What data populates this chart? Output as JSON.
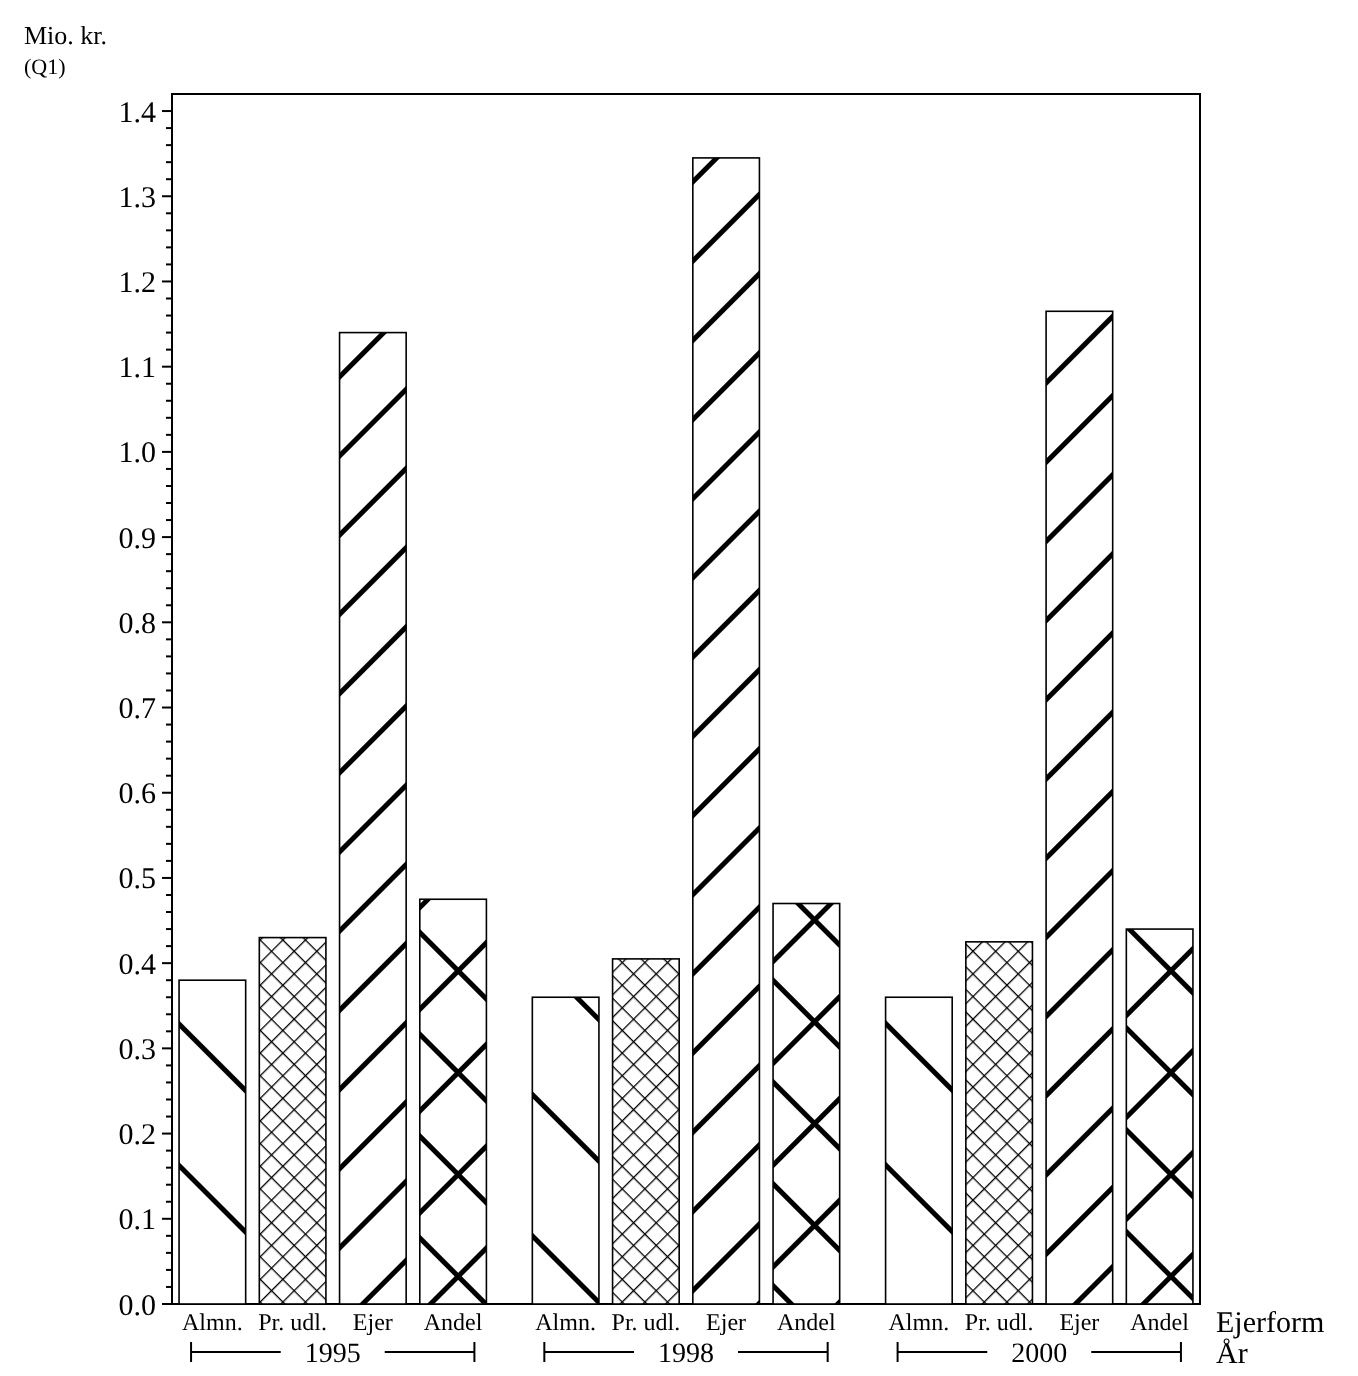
{
  "chart_data": {
    "type": "bar",
    "ylabel": "Mio. kr.",
    "subtitle": "(Q1)",
    "xlabel": "Ejerform",
    "annotations": [
      "År"
    ],
    "categories": [
      "1995",
      "1998",
      "2000"
    ],
    "series": [
      {
        "name": "Almn.",
        "color": "#000000",
        "values": [
          0.38,
          0.36,
          0.36
        ]
      },
      {
        "name": "Pr. udl.",
        "color": "#000000",
        "values": [
          0.43,
          0.405,
          0.425
        ]
      },
      {
        "name": "Ejer",
        "color": "#000000",
        "values": [
          1.14,
          1.345,
          1.165
        ]
      },
      {
        "name": "Andel",
        "color": "#000000",
        "values": [
          0.475,
          0.47,
          0.44
        ]
      }
    ],
    "ylim": [
      0,
      1.42
    ],
    "yticks": [
      {
        "value": 0,
        "label": "0.0"
      },
      {
        "value": 0.02,
        "label": null
      },
      {
        "value": 0.04,
        "label": null
      },
      {
        "value": 0.06,
        "label": null
      },
      {
        "value": 0.08,
        "label": null
      },
      0.1,
      {
        "value": 0.12,
        "label": null
      },
      {
        "value": 0.14,
        "label": null
      },
      {
        "value": 0.16,
        "label": null
      },
      {
        "value": 0.18,
        "label": null
      },
      0.2,
      {
        "value": 0.22,
        "label": null
      },
      {
        "value": 0.24,
        "label": null
      },
      {
        "value": 0.26,
        "label": null
      },
      {
        "value": 0.28,
        "label": null
      },
      0.3,
      {
        "value": 0.32,
        "label": null
      },
      {
        "value": 0.34,
        "label": null
      },
      {
        "value": 0.36,
        "label": null
      },
      {
        "value": 0.38,
        "label": null
      },
      0.4,
      {
        "value": 0.42,
        "label": null
      },
      {
        "value": 0.44,
        "label": null
      },
      {
        "value": 0.46,
        "label": null
      },
      {
        "value": 0.48,
        "label": null
      },
      0.5,
      {
        "value": 0.52,
        "label": null
      },
      {
        "value": 0.54,
        "label": null
      },
      {
        "value": 0.56,
        "label": null
      },
      {
        "value": 0.58,
        "label": null
      },
      0.6,
      {
        "value": 0.62,
        "label": null
      },
      {
        "value": 0.64,
        "label": null
      },
      {
        "value": 0.66,
        "label": null
      },
      {
        "value": 0.68,
        "label": null
      },
      0.7,
      {
        "value": 0.72,
        "label": null
      },
      {
        "value": 0.74,
        "label": null
      },
      {
        "value": 0.76,
        "label": null
      },
      {
        "value": 0.78,
        "label": null
      },
      0.8,
      {
        "value": 0.82,
        "label": null
      },
      {
        "value": 0.84,
        "label": null
      },
      {
        "value": 0.86,
        "label": null
      },
      {
        "value": 0.88,
        "label": null
      },
      0.9,
      {
        "value": 0.92,
        "label": null
      },
      {
        "value": 0.94,
        "label": null
      },
      {
        "value": 0.96,
        "label": null
      },
      {
        "value": 0.98,
        "label": null
      },
      {
        "value": 1.0,
        "label": "1.0"
      },
      {
        "value": 1.02,
        "label": null
      },
      {
        "value": 1.04,
        "label": null
      },
      {
        "value": 1.06,
        "label": null
      },
      {
        "value": 1.08,
        "label": null
      },
      1.1,
      {
        "value": 1.12,
        "label": null
      },
      {
        "value": 1.14,
        "label": null
      },
      {
        "value": 1.16,
        "label": null
      },
      {
        "value": 1.18,
        "label": null
      },
      1.2,
      {
        "value": 1.22,
        "label": null
      },
      {
        "value": 1.24,
        "label": null
      },
      {
        "value": 1.26,
        "label": null
      },
      {
        "value": 1.28,
        "label": null
      },
      1.3,
      {
        "value": 1.32,
        "label": null
      },
      {
        "value": 1.34,
        "label": null
      },
      {
        "value": 1.36,
        "label": null
      },
      {
        "value": 1.38,
        "label": null
      },
      1.4
    ],
    "grid": false
  }
}
